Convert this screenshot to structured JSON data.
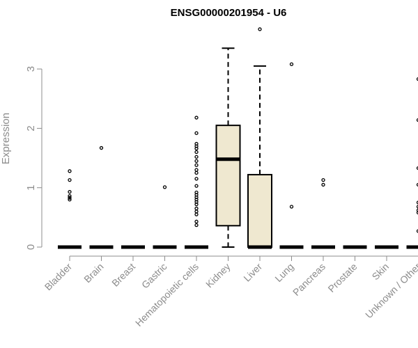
{
  "chart_data": {
    "type": "box",
    "title": "ENSG00000201954 - U6",
    "ylabel": "Expression",
    "xlabel": "",
    "ylim": [
      0,
      3.7
    ],
    "yticks": [
      0,
      1,
      2,
      3
    ],
    "box_fill": "#efe8d0",
    "median_color": "#000000",
    "categories": [
      "Bladder",
      "Brain",
      "Breast",
      "Gastric",
      "Hematopoietic cells",
      "Kidney",
      "Liver",
      "Lung",
      "Pancreas",
      "Prostate",
      "Skin",
      "Unknown / Other"
    ],
    "boxes": [
      {
        "name": "Bladder",
        "q1": 0,
        "median": 0,
        "q3": 0,
        "whisker_low": 0,
        "whisker_high": 0,
        "outliers": [
          0.8,
          0.83,
          0.86,
          0.93,
          1.13,
          1.28
        ]
      },
      {
        "name": "Brain",
        "q1": 0,
        "median": 0,
        "q3": 0,
        "whisker_low": 0,
        "whisker_high": 0,
        "outliers": [
          1.67
        ]
      },
      {
        "name": "Breast",
        "q1": 0,
        "median": 0,
        "q3": 0,
        "whisker_low": 0,
        "whisker_high": 0,
        "outliers": []
      },
      {
        "name": "Gastric",
        "q1": 0,
        "median": 0,
        "q3": 0,
        "whisker_low": 0,
        "whisker_high": 0,
        "outliers": [
          1.01
        ]
      },
      {
        "name": "Hematopoietic cells",
        "q1": 0,
        "median": 0,
        "q3": 0,
        "whisker_low": 0,
        "whisker_high": 0,
        "outliers": [
          0.37,
          0.43,
          0.55,
          0.6,
          0.65,
          0.72,
          0.76,
          0.8,
          0.84,
          0.88,
          0.92,
          1.03,
          1.15,
          1.25,
          1.3,
          1.38,
          1.45,
          1.52,
          1.6,
          1.66,
          1.7,
          1.74,
          1.92,
          2.18
        ]
      },
      {
        "name": "Kidney",
        "q1": 0.36,
        "median": 1.48,
        "q3": 2.05,
        "whisker_low": 0,
        "whisker_high": 3.35,
        "outliers": []
      },
      {
        "name": "Liver",
        "q1": 0,
        "median": 0,
        "q3": 1.22,
        "whisker_low": 0,
        "whisker_high": 3.05,
        "outliers": [
          3.67
        ]
      },
      {
        "name": "Lung",
        "q1": 0,
        "median": 0,
        "q3": 0,
        "whisker_low": 0,
        "whisker_high": 0,
        "outliers": [
          0.68,
          3.08
        ]
      },
      {
        "name": "Pancreas",
        "q1": 0,
        "median": 0,
        "q3": 0,
        "whisker_low": 0,
        "whisker_high": 0,
        "outliers": [
          1.05,
          1.13
        ]
      },
      {
        "name": "Prostate",
        "q1": 0,
        "median": 0,
        "q3": 0,
        "whisker_low": 0,
        "whisker_high": 0,
        "outliers": []
      },
      {
        "name": "Skin",
        "q1": 0,
        "median": 0,
        "q3": 0,
        "whisker_low": 0,
        "whisker_high": 0,
        "outliers": []
      },
      {
        "name": "Unknown / Other",
        "q1": 0,
        "median": 0,
        "q3": 0,
        "whisker_low": 0,
        "whisker_high": 0,
        "outliers": [
          0.27,
          0.58,
          0.62,
          0.68,
          0.75,
          1.05,
          1.33,
          2.14,
          2.83
        ]
      }
    ]
  }
}
